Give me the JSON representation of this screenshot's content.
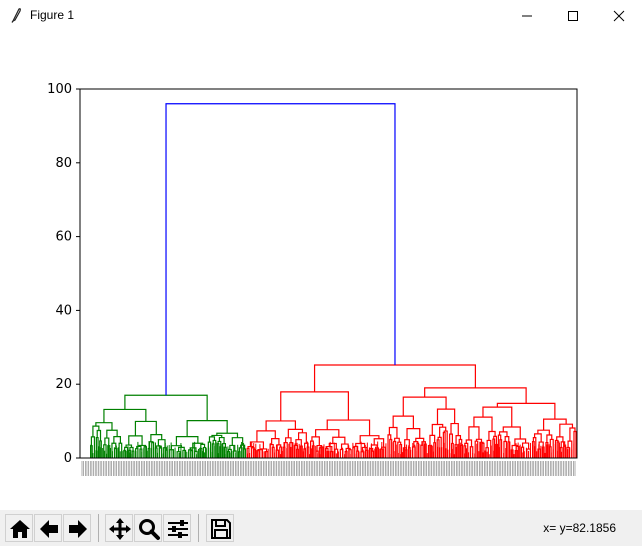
{
  "window": {
    "title": "Figure 1"
  },
  "toolbar": {
    "buttons": [
      {
        "name": "home-button",
        "icon": "home-icon"
      },
      {
        "name": "back-button",
        "icon": "arrow-left-icon"
      },
      {
        "name": "forward-button",
        "icon": "arrow-right-icon"
      },
      {
        "name": "pan-button",
        "icon": "move-icon"
      },
      {
        "name": "zoom-button",
        "icon": "magnifier-icon"
      },
      {
        "name": "configure-subplots-button",
        "icon": "sliders-icon"
      },
      {
        "name": "save-button",
        "icon": "floppy-icon"
      }
    ],
    "coords": "x= y=82.1856"
  },
  "chart_data": {
    "type": "dendrogram",
    "ylim": [
      0,
      100
    ],
    "yticks": [
      0,
      20,
      40,
      60,
      80,
      100
    ],
    "root_link": {
      "height": 96,
      "color": "#0000ff"
    },
    "clusters": [
      {
        "color": "#008000",
        "top_height": 17,
        "sub_heights": [
          17,
          16.3,
          15.5,
          13.5,
          12,
          10,
          8,
          6,
          4
        ],
        "leaf_span": [
          0.02,
          0.335
        ]
      },
      {
        "color": "#ff0000",
        "top_height": 25.2,
        "sub_heights": [
          21.5,
          19.5,
          18.5,
          17.5,
          14.5,
          13.5,
          12,
          10,
          8,
          6,
          4
        ],
        "leaf_span": [
          0.335,
          1.0
        ]
      }
    ],
    "grid": false
  }
}
